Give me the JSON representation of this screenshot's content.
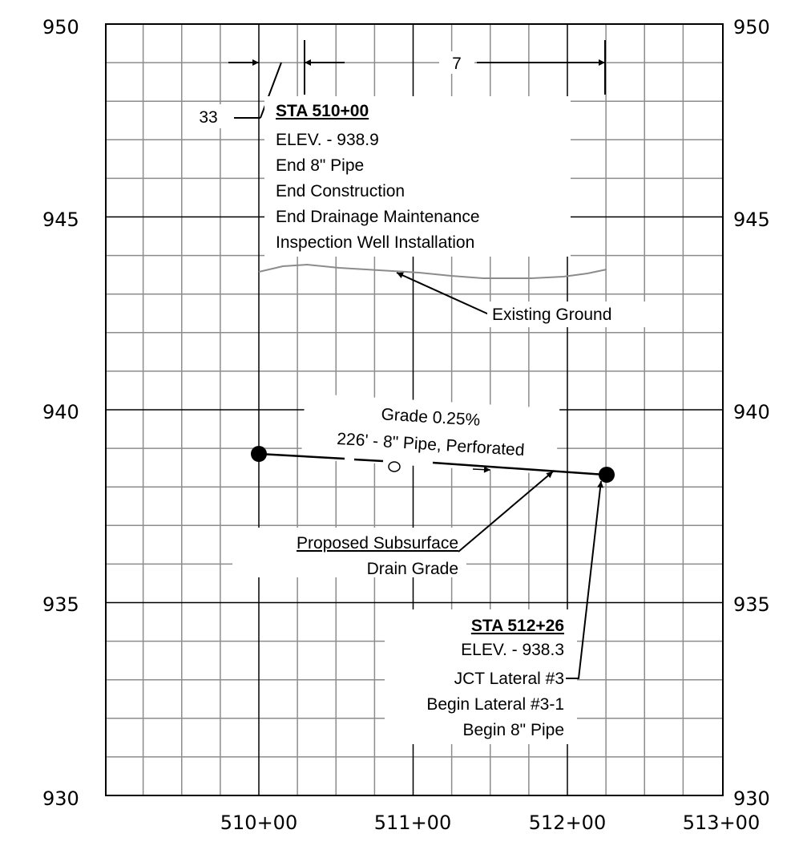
{
  "axes": {
    "y_ticks": [
      "950",
      "945",
      "940",
      "935",
      "930"
    ],
    "x_ticks": [
      "510+00",
      "511+00",
      "512+00",
      "513+00"
    ]
  },
  "dimensions": {
    "left": "33",
    "right": "7"
  },
  "sta_start": {
    "title": "STA 510+00",
    "lines": [
      "ELEV. - 938.9",
      "End 8\" Pipe",
      "End Construction",
      "End Drainage Maintenance",
      "Inspection Well Installation"
    ]
  },
  "sta_end": {
    "title": "STA 512+26",
    "lines": [
      "ELEV. - 938.3",
      "JCT Lateral #3",
      "Begin Lateral #3-1",
      "Begin 8\" Pipe"
    ]
  },
  "existing_ground_label": "Existing Ground",
  "grade_label": "Grade 0.25%",
  "pipe_label": "226' - 8\" Pipe, Perforated",
  "proposed_label": {
    "line1": "Proposed Subsurface",
    "line2": "Drain Grade"
  },
  "colors": {
    "major_grid": "#000000",
    "minor_grid": "#8c8c8c",
    "ground": "#8c8c8c"
  }
}
